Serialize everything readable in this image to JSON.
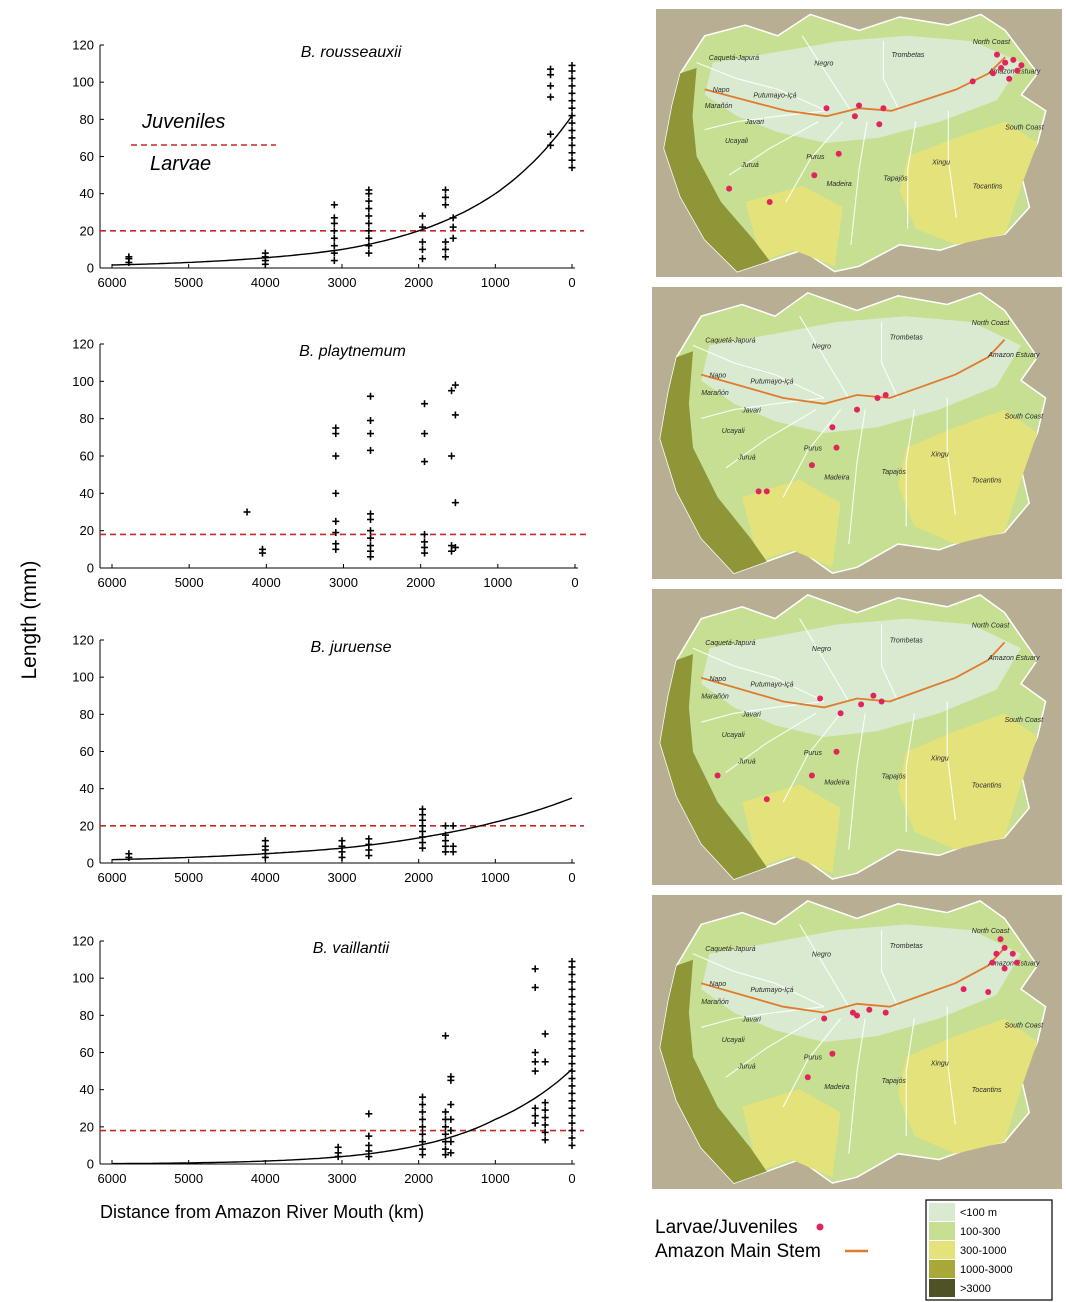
{
  "figure": {
    "y_axis_label": "Length (mm)",
    "x_axis_label": "Distance from Amazon River Mouth (km)",
    "annotations": {
      "juveniles": "Juveniles",
      "larvae": "Larvae"
    },
    "legend": {
      "larvae_juveniles": "Larvae/Juveniles",
      "main_stem": "Amazon Main Stem",
      "point_color": "#e0245e",
      "stem_color": "#e07b2e"
    },
    "elevation_legend": [
      {
        "label": "<100 m",
        "color": "#d9ead0"
      },
      {
        "label": "100-300",
        "color": "#c6df92"
      },
      {
        "label": "300-1000",
        "color": "#e4e27a"
      },
      {
        "label": "1000-3000",
        "color": "#a8a838"
      },
      {
        "label": ">3000",
        "color": "#4f5226"
      }
    ],
    "map_labels": [
      "Caquetá-Japurá",
      "Napo",
      "Marañón",
      "Ucayali",
      "Javari",
      "Putumayo-Içá",
      "Negro",
      "Trombetas",
      "North Coast",
      "Amazon Estuary",
      "South Coast",
      "Juruá",
      "Purus",
      "Madeira",
      "Tapajós",
      "Xingu",
      "Tocantins"
    ]
  },
  "chart_data": [
    {
      "type": "scatter",
      "title": "B. rousseauxii",
      "xlabel": "Distance from Amazon River Mouth (km)",
      "ylabel": "Length (mm)",
      "xlim": [
        6000,
        0
      ],
      "x_reversed": true,
      "ylim": [
        0,
        120
      ],
      "xticks": [
        "6000",
        "5000",
        "4000",
        "3000",
        "2000",
        "1000",
        "0"
      ],
      "yticks": [
        "0",
        "20",
        "40",
        "60",
        "80",
        "100",
        "120"
      ],
      "threshold": 20,
      "marker": "plus",
      "has_curve": true,
      "curve_points": [
        [
          6000,
          1.6
        ],
        [
          5000,
          3.0
        ],
        [
          4000,
          5.5
        ],
        [
          3000,
          10
        ],
        [
          2000,
          20
        ],
        [
          1000,
          40
        ],
        [
          0,
          82
        ]
      ],
      "points": [
        [
          5780,
          3
        ],
        [
          5780,
          5
        ],
        [
          5780,
          6
        ],
        [
          4000,
          2
        ],
        [
          4000,
          4
        ],
        [
          4000,
          6
        ],
        [
          4000,
          8
        ],
        [
          3100,
          4
        ],
        [
          3100,
          8
        ],
        [
          3100,
          12
        ],
        [
          3100,
          16
        ],
        [
          3100,
          20
        ],
        [
          3100,
          24
        ],
        [
          3100,
          27
        ],
        [
          3100,
          34
        ],
        [
          2650,
          8
        ],
        [
          2650,
          12
        ],
        [
          2650,
          16
        ],
        [
          2650,
          20
        ],
        [
          2650,
          24
        ],
        [
          2650,
          28
        ],
        [
          2650,
          32
        ],
        [
          2650,
          36
        ],
        [
          2650,
          40
        ],
        [
          2650,
          42
        ],
        [
          1950,
          5
        ],
        [
          1950,
          10
        ],
        [
          1950,
          14
        ],
        [
          1950,
          22
        ],
        [
          1950,
          28
        ],
        [
          1650,
          6
        ],
        [
          1650,
          10
        ],
        [
          1650,
          14
        ],
        [
          1650,
          34
        ],
        [
          1650,
          38
        ],
        [
          1650,
          42
        ],
        [
          1550,
          16
        ],
        [
          1550,
          22
        ],
        [
          1550,
          27
        ],
        [
          280,
          66
        ],
        [
          280,
          72
        ],
        [
          280,
          92
        ],
        [
          280,
          98
        ],
        [
          280,
          104
        ],
        [
          280,
          107
        ],
        [
          0,
          54
        ],
        [
          0,
          58
        ],
        [
          0,
          62
        ],
        [
          0,
          66
        ],
        [
          0,
          70
        ],
        [
          0,
          74
        ],
        [
          0,
          78
        ],
        [
          0,
          82
        ],
        [
          0,
          86
        ],
        [
          0,
          90
        ],
        [
          0,
          94
        ],
        [
          0,
          98
        ],
        [
          0,
          102
        ],
        [
          0,
          106
        ],
        [
          0,
          109
        ]
      ]
    },
    {
      "type": "scatter",
      "title": "B. playtnemum",
      "xlabel": "Distance from Amazon River Mouth (km)",
      "ylabel": "Length (mm)",
      "xlim": [
        6000,
        0
      ],
      "x_reversed": true,
      "ylim": [
        0,
        120
      ],
      "xticks": [
        "6000",
        "5000",
        "4000",
        "3000",
        "2000",
        "1000",
        "0"
      ],
      "yticks": [
        "0",
        "20",
        "40",
        "60",
        "80",
        "100",
        "120"
      ],
      "threshold": 18,
      "marker": "plus",
      "has_curve": false,
      "points": [
        [
          4250,
          30
        ],
        [
          4050,
          8
        ],
        [
          4050,
          10
        ],
        [
          3100,
          10
        ],
        [
          3100,
          13
        ],
        [
          3100,
          19
        ],
        [
          3100,
          25
        ],
        [
          3100,
          40
        ],
        [
          3100,
          60
        ],
        [
          3100,
          72
        ],
        [
          3100,
          75
        ],
        [
          2650,
          6
        ],
        [
          2650,
          9
        ],
        [
          2650,
          12
        ],
        [
          2650,
          16
        ],
        [
          2650,
          20
        ],
        [
          2650,
          26
        ],
        [
          2650,
          29
        ],
        [
          2650,
          63
        ],
        [
          2650,
          72
        ],
        [
          2650,
          79
        ],
        [
          2650,
          92
        ],
        [
          1950,
          8
        ],
        [
          1950,
          11
        ],
        [
          1950,
          14
        ],
        [
          1950,
          18
        ],
        [
          1950,
          57
        ],
        [
          1950,
          72
        ],
        [
          1950,
          88
        ],
        [
          1600,
          9
        ],
        [
          1600,
          12
        ],
        [
          1600,
          60
        ],
        [
          1600,
          95
        ],
        [
          1550,
          11
        ],
        [
          1550,
          35
        ],
        [
          1550,
          82
        ],
        [
          1550,
          98
        ]
      ]
    },
    {
      "type": "scatter",
      "title": "B. juruense",
      "xlabel": "Distance from Amazon River Mouth (km)",
      "ylabel": "Length (mm)",
      "xlim": [
        6000,
        0
      ],
      "x_reversed": true,
      "ylim": [
        0,
        120
      ],
      "xticks": [
        "6000",
        "5000",
        "4000",
        "3000",
        "2000",
        "1000",
        "0"
      ],
      "yticks": [
        "0",
        "20",
        "40",
        "60",
        "80",
        "100",
        "120"
      ],
      "threshold": 20,
      "marker": "plus",
      "has_curve": true,
      "curve_points": [
        [
          6000,
          1.8
        ],
        [
          5000,
          3.0
        ],
        [
          4000,
          5.0
        ],
        [
          3000,
          8.0
        ],
        [
          2000,
          13.5
        ],
        [
          1000,
          22
        ],
        [
          0,
          35
        ]
      ],
      "points": [
        [
          5780,
          3
        ],
        [
          5780,
          5
        ],
        [
          4000,
          3
        ],
        [
          4000,
          5
        ],
        [
          4000,
          7
        ],
        [
          4000,
          9
        ],
        [
          4000,
          12
        ],
        [
          3000,
          3
        ],
        [
          3000,
          6
        ],
        [
          3000,
          9
        ],
        [
          3000,
          12
        ],
        [
          2650,
          4
        ],
        [
          2650,
          7
        ],
        [
          2650,
          10
        ],
        [
          2650,
          13
        ],
        [
          1950,
          8
        ],
        [
          1950,
          11
        ],
        [
          1950,
          14
        ],
        [
          1950,
          17
        ],
        [
          1950,
          20
        ],
        [
          1950,
          23
        ],
        [
          1950,
          26
        ],
        [
          1950,
          29
        ],
        [
          1650,
          6
        ],
        [
          1650,
          9
        ],
        [
          1650,
          12
        ],
        [
          1650,
          15
        ],
        [
          1650,
          20
        ],
        [
          1550,
          6
        ],
        [
          1550,
          9
        ],
        [
          1550,
          20
        ]
      ]
    },
    {
      "type": "scatter",
      "title": "B. vaillantii",
      "xlabel": "Distance from Amazon River Mouth (km)",
      "ylabel": "Length (mm)",
      "xlim": [
        6000,
        0
      ],
      "x_reversed": true,
      "ylim": [
        0,
        120
      ],
      "xticks": [
        "6000",
        "5000",
        "4000",
        "3000",
        "2000",
        "1000",
        "0"
      ],
      "yticks": [
        "0",
        "20",
        "40",
        "60",
        "80",
        "100",
        "120"
      ],
      "threshold": 18,
      "marker": "plus",
      "has_curve": true,
      "curve_points": [
        [
          6000,
          0.2
        ],
        [
          5000,
          0.6
        ],
        [
          4000,
          1.6
        ],
        [
          3000,
          4
        ],
        [
          2000,
          10
        ],
        [
          1000,
          24
        ],
        [
          0,
          51
        ]
      ],
      "points": [
        [
          3050,
          4
        ],
        [
          3050,
          6
        ],
        [
          3050,
          9
        ],
        [
          2650,
          4
        ],
        [
          2650,
          7
        ],
        [
          2650,
          10
        ],
        [
          2650,
          15
        ],
        [
          2650,
          27
        ],
        [
          1950,
          5
        ],
        [
          1950,
          8
        ],
        [
          1950,
          12
        ],
        [
          1950,
          16
        ],
        [
          1950,
          20
        ],
        [
          1950,
          24
        ],
        [
          1950,
          28
        ],
        [
          1950,
          32
        ],
        [
          1950,
          36
        ],
        [
          1650,
          5
        ],
        [
          1650,
          8
        ],
        [
          1650,
          12
        ],
        [
          1650,
          16
        ],
        [
          1650,
          20
        ],
        [
          1650,
          24
        ],
        [
          1650,
          28
        ],
        [
          1650,
          69
        ],
        [
          1580,
          6
        ],
        [
          1580,
          12
        ],
        [
          1580,
          18
        ],
        [
          1580,
          24
        ],
        [
          1580,
          32
        ],
        [
          1580,
          45
        ],
        [
          1580,
          47
        ],
        [
          480,
          22
        ],
        [
          480,
          26
        ],
        [
          480,
          30
        ],
        [
          480,
          50
        ],
        [
          480,
          55
        ],
        [
          480,
          60
        ],
        [
          480,
          95
        ],
        [
          480,
          105
        ],
        [
          350,
          13
        ],
        [
          350,
          17
        ],
        [
          350,
          21
        ],
        [
          350,
          25
        ],
        [
          350,
          29
        ],
        [
          350,
          33
        ],
        [
          350,
          55
        ],
        [
          350,
          70
        ],
        [
          0,
          10
        ],
        [
          0,
          14
        ],
        [
          0,
          18
        ],
        [
          0,
          22
        ],
        [
          0,
          26
        ],
        [
          0,
          30
        ],
        [
          0,
          34
        ],
        [
          0,
          38
        ],
        [
          0,
          42
        ],
        [
          0,
          46
        ],
        [
          0,
          50
        ],
        [
          0,
          54
        ],
        [
          0,
          58
        ],
        [
          0,
          62
        ],
        [
          0,
          66
        ],
        [
          0,
          70
        ],
        [
          0,
          74
        ],
        [
          0,
          78
        ],
        [
          0,
          82
        ],
        [
          0,
          86
        ],
        [
          0,
          90
        ],
        [
          0,
          94
        ],
        [
          0,
          98
        ],
        [
          0,
          102
        ],
        [
          0,
          106
        ],
        [
          0,
          109
        ]
      ]
    }
  ]
}
